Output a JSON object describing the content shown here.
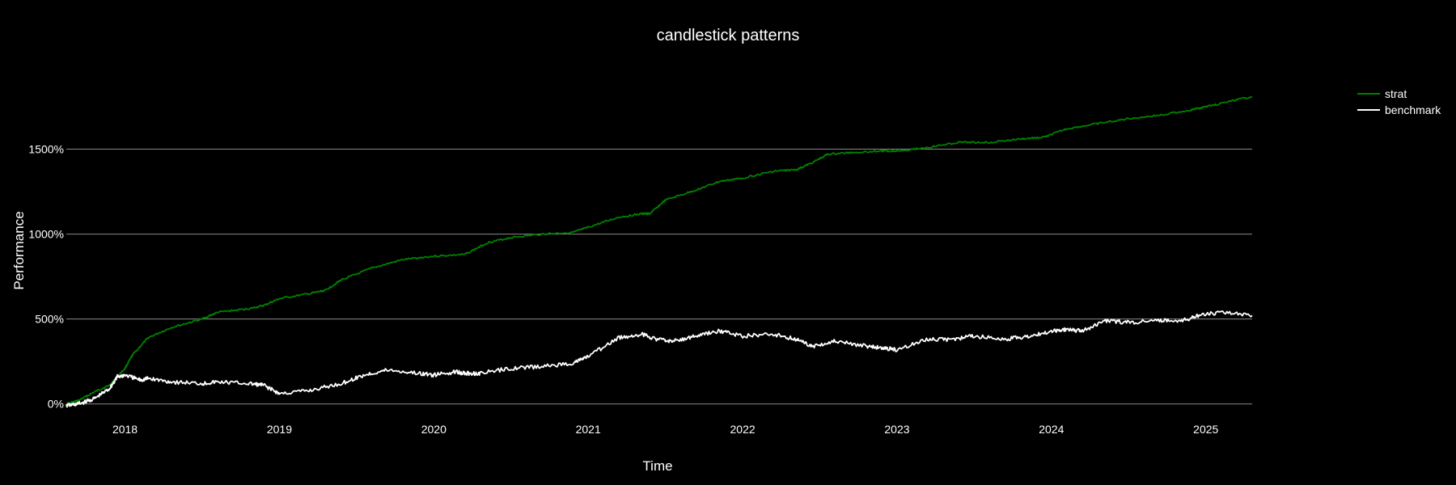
{
  "chart_data": {
    "type": "line",
    "title": "candlestick patterns",
    "xlabel": "Time",
    "ylabel": "Performance",
    "background": "#000000",
    "grid": "horizontal",
    "legend_position": "top-right",
    "xlim": [
      2017.62,
      2025.3
    ],
    "ylim": [
      -25,
      1950
    ],
    "y_ticks": [
      0,
      500,
      1000,
      1500
    ],
    "y_tick_labels": [
      "0%",
      "500%",
      "1000%",
      "1500%"
    ],
    "x_ticks": [
      2018,
      2019,
      2020,
      2021,
      2022,
      2023,
      2024,
      2025
    ],
    "x_tick_labels": [
      "2018",
      "2019",
      "2020",
      "2021",
      "2022",
      "2023",
      "2024",
      "2025"
    ],
    "series": [
      {
        "name": "strat",
        "color": "#008000",
        "x": [
          2017.62,
          2017.7,
          2017.8,
          2017.9,
          2018.0,
          2018.05,
          2018.15,
          2018.3,
          2018.5,
          2018.6,
          2018.8,
          2018.9,
          2019.0,
          2019.2,
          2019.3,
          2019.4,
          2019.6,
          2019.8,
          2020.0,
          2020.2,
          2020.35,
          2020.5,
          2020.7,
          2020.9,
          2021.0,
          2021.2,
          2021.35,
          2021.4,
          2021.5,
          2021.7,
          2021.85,
          2022.0,
          2022.2,
          2022.35,
          2022.45,
          2022.55,
          2022.7,
          2022.9,
          2023.0,
          2023.2,
          2023.4,
          2023.6,
          2023.8,
          2023.95,
          2024.1,
          2024.3,
          2024.5,
          2024.7,
          2024.9,
          2025.0,
          2025.15,
          2025.3
        ],
        "y": [
          0,
          20,
          70,
          110,
          210,
          290,
          390,
          450,
          500,
          540,
          560,
          580,
          620,
          650,
          670,
          730,
          800,
          850,
          870,
          880,
          950,
          980,
          1000,
          1010,
          1040,
          1100,
          1120,
          1120,
          1200,
          1260,
          1310,
          1330,
          1370,
          1380,
          1420,
          1470,
          1480,
          1490,
          1490,
          1510,
          1540,
          1540,
          1560,
          1570,
          1620,
          1650,
          1680,
          1700,
          1730,
          1750,
          1780,
          1810
        ]
      },
      {
        "name": "benchmark",
        "color": "#ffffff",
        "x": [
          2017.62,
          2017.7,
          2017.8,
          2017.9,
          2017.95,
          2018.0,
          2018.1,
          2018.15,
          2018.3,
          2018.5,
          2018.6,
          2018.8,
          2018.9,
          2019.0,
          2019.2,
          2019.4,
          2019.55,
          2019.7,
          2019.9,
          2020.0,
          2020.15,
          2020.2,
          2020.3,
          2020.5,
          2020.7,
          2020.9,
          2021.0,
          2021.2,
          2021.35,
          2021.45,
          2021.55,
          2021.7,
          2021.85,
          2022.0,
          2022.2,
          2022.35,
          2022.45,
          2022.6,
          2022.8,
          2022.9,
          2023.0,
          2023.2,
          2023.35,
          2023.5,
          2023.7,
          2023.85,
          2024.0,
          2024.1,
          2024.2,
          2024.35,
          2024.5,
          2024.7,
          2024.85,
          2024.95,
          2025.1,
          2025.3
        ],
        "y": [
          -10,
          0,
          30,
          90,
          160,
          170,
          140,
          150,
          130,
          120,
          130,
          120,
          110,
          60,
          80,
          120,
          170,
          200,
          180,
          170,
          190,
          180,
          180,
          210,
          220,
          240,
          280,
          390,
          410,
          380,
          370,
          400,
          430,
          400,
          410,
          380,
          340,
          370,
          340,
          330,
          320,
          380,
          380,
          400,
          380,
          400,
          430,
          440,
          430,
          490,
          480,
          490,
          490,
          520,
          540,
          520
        ]
      }
    ]
  }
}
